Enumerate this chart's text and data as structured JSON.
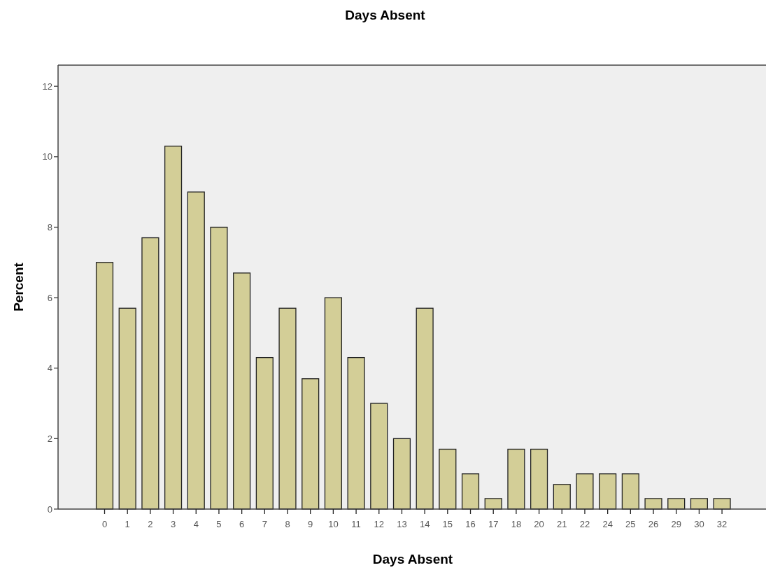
{
  "chart_data": {
    "type": "bar",
    "title": "Days Absent",
    "xlabel": "Days Absent",
    "ylabel": "Percent",
    "categories": [
      "0",
      "1",
      "2",
      "3",
      "4",
      "5",
      "6",
      "7",
      "8",
      "9",
      "10",
      "11",
      "12",
      "13",
      "14",
      "15",
      "16",
      "17",
      "18",
      "20",
      "21",
      "22",
      "24",
      "25",
      "26",
      "29",
      "30",
      "32"
    ],
    "values": [
      7,
      5.7,
      7.7,
      10.3,
      9,
      8,
      6.7,
      4.3,
      5.7,
      3.7,
      6,
      4.3,
      3,
      2,
      5.7,
      1.7,
      1,
      0.3,
      1.7,
      1.7,
      0.7,
      1,
      1,
      1,
      0.3,
      0.3,
      0.3,
      0.3
    ],
    "color": "#d3ce97",
    "ylim": [
      0,
      12.6
    ],
    "yticks": [
      0,
      2,
      4,
      6,
      8,
      10,
      12
    ],
    "grid": false
  }
}
